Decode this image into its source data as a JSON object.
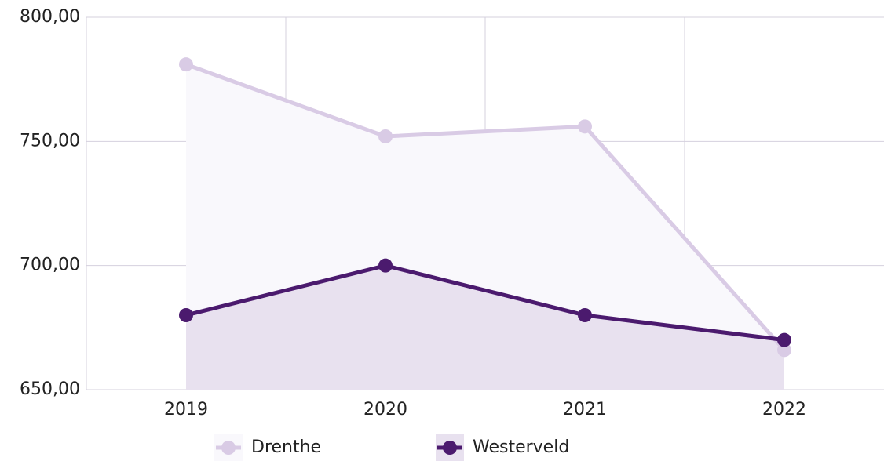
{
  "chart_data": {
    "type": "line",
    "categories": [
      "2019",
      "2020",
      "2021",
      "2022"
    ],
    "series": [
      {
        "name": "Drenthe",
        "color": "#d9cbe5",
        "fill": "#f9f8fc",
        "values": [
          781,
          752,
          756,
          666
        ]
      },
      {
        "name": "Westerveld",
        "color": "#4b1a6e",
        "fill": "#e8e1ef",
        "values": [
          680,
          700,
          680,
          670
        ]
      }
    ],
    "ylim": [
      650,
      800
    ],
    "yticks": [
      {
        "value": 650,
        "label": "650,00"
      },
      {
        "value": 700,
        "label": "700,00"
      },
      {
        "value": 750,
        "label": "750,00"
      },
      {
        "value": 800,
        "label": "800,00"
      }
    ],
    "grid": true,
    "area": true,
    "legend": "bottom"
  }
}
